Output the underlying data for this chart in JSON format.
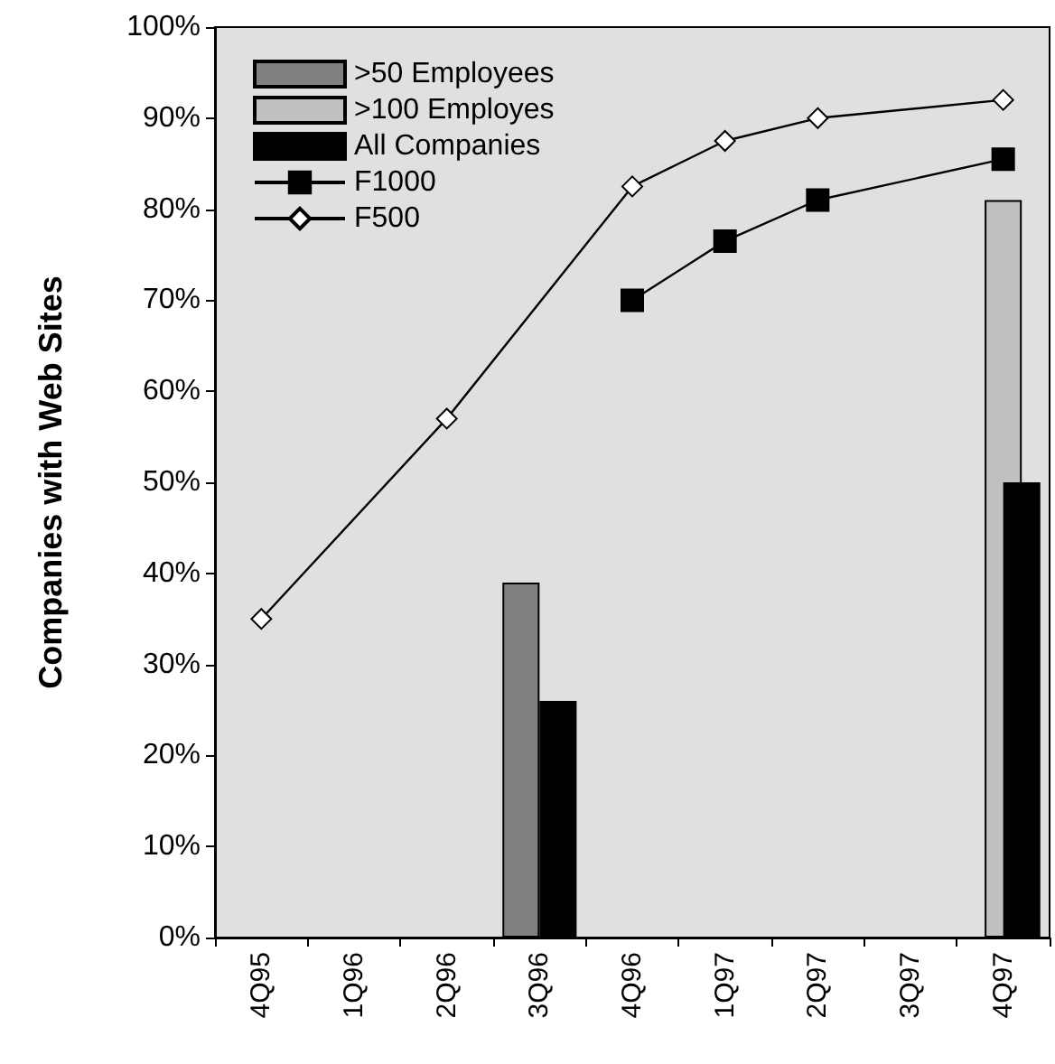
{
  "chart_data": {
    "type": "bar",
    "ylabel": "Companies with Web Sites",
    "categories": [
      "4Q95",
      "1Q96",
      "2Q96",
      "3Q96",
      "4Q96",
      "1Q97",
      "2Q97",
      "3Q97",
      "4Q97"
    ],
    "series": [
      {
        "name": ">50 Employees",
        "color": "#808080",
        "values": [
          null,
          null,
          null,
          39,
          null,
          null,
          null,
          null,
          null
        ]
      },
      {
        "name": ">100 Employes",
        "color": "#c0c0c0",
        "values": [
          null,
          null,
          null,
          null,
          null,
          null,
          null,
          null,
          81
        ]
      },
      {
        "name": "All Companies",
        "color": "#000000",
        "values": [
          null,
          null,
          null,
          26,
          null,
          null,
          null,
          null,
          50
        ]
      },
      {
        "name": "F1000",
        "type": "line",
        "color": "#000000",
        "marker": "square",
        "values": [
          null,
          null,
          null,
          null,
          70,
          76.5,
          81,
          null,
          85.5
        ]
      },
      {
        "name": "F500",
        "type": "line",
        "color": "#ffffff",
        "marker": "diamond",
        "values": [
          35,
          null,
          57,
          null,
          82.5,
          87.5,
          90,
          null,
          92
        ]
      }
    ],
    "ylim": [
      0,
      100
    ],
    "yticks": [
      {
        "value": 0,
        "label": "0%"
      },
      {
        "value": 10,
        "label": "10%"
      },
      {
        "value": 20,
        "label": "20%"
      },
      {
        "value": 30,
        "label": "30%"
      },
      {
        "value": 40,
        "label": "40%"
      },
      {
        "value": 50,
        "label": "50%"
      },
      {
        "value": 60,
        "label": "60%"
      },
      {
        "value": 70,
        "label": "70%"
      },
      {
        "value": 80,
        "label": "80%"
      },
      {
        "value": 90,
        "label": "90%"
      },
      {
        "value": 100,
        "label": "100%"
      }
    ],
    "grid": false,
    "legend": "top left",
    "line_style": "solid"
  }
}
